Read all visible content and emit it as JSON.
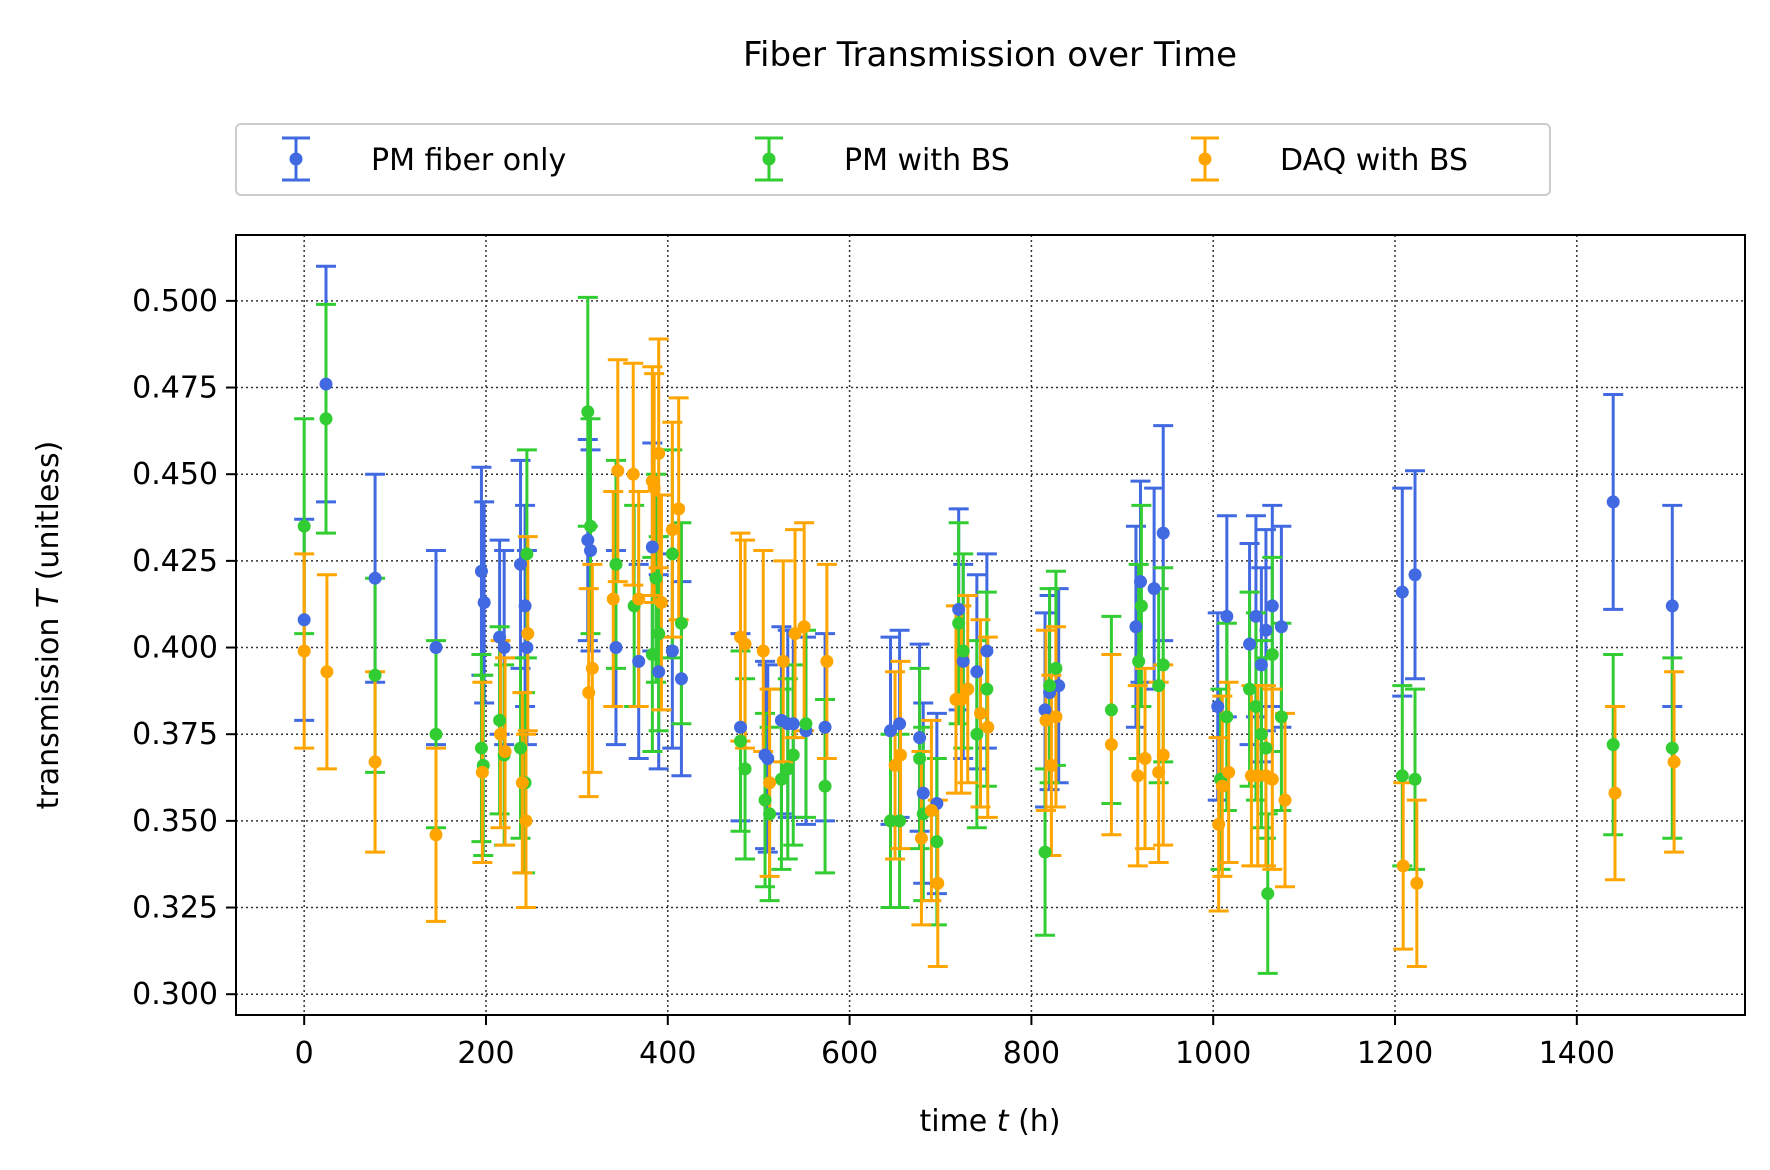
{
  "chart_data": {
    "type": "scatter",
    "title": "Fiber Transmission over Time",
    "xlabel": {
      "prefix": "time ",
      "var": "t",
      "suffix": " (h)"
    },
    "ylabel": {
      "prefix": "transmission ",
      "var": "T",
      "suffix": " (unitless)"
    },
    "xlim": [
      -75,
      1585
    ],
    "ylim": [
      0.294,
      0.519
    ],
    "xticks": [
      0,
      200,
      400,
      600,
      800,
      1000,
      1200,
      1400
    ],
    "xtick_labels": [
      "0",
      "200",
      "400",
      "600",
      "800",
      "1000",
      "1200",
      "1400"
    ],
    "yticks": [
      0.3,
      0.325,
      0.35,
      0.375,
      0.4,
      0.425,
      0.45,
      0.475,
      0.5
    ],
    "ytick_labels": [
      "0.300",
      "0.325",
      "0.350",
      "0.375",
      "0.400",
      "0.425",
      "0.450",
      "0.475",
      "0.500"
    ],
    "grid": true,
    "legend_position": "top-center, above plot",
    "series": [
      {
        "name": "PM fiber only",
        "color": "#4169e1",
        "x": [
          0,
          24,
          78,
          145,
          195,
          198,
          215,
          220,
          238,
          243,
          245,
          312,
          315,
          343,
          368,
          383,
          390,
          405,
          415,
          480,
          507,
          510,
          525,
          532,
          538,
          552,
          573,
          645,
          655,
          677,
          681,
          696,
          720,
          725,
          740,
          751,
          815,
          820,
          830,
          915,
          920,
          935,
          945,
          1005,
          1015,
          1040,
          1047,
          1053,
          1058,
          1065,
          1075,
          1208,
          1222,
          1440,
          1505
        ],
        "y": [
          0.408,
          0.476,
          0.42,
          0.4,
          0.422,
          0.413,
          0.403,
          0.4,
          0.424,
          0.412,
          0.4,
          0.431,
          0.428,
          0.4,
          0.396,
          0.429,
          0.393,
          0.399,
          0.391,
          0.377,
          0.369,
          0.368,
          0.379,
          0.378,
          0.378,
          0.376,
          0.377,
          0.376,
          0.378,
          0.374,
          0.358,
          0.355,
          0.411,
          0.396,
          0.393,
          0.399,
          0.382,
          0.387,
          0.389,
          0.406,
          0.419,
          0.417,
          0.433,
          0.383,
          0.409,
          0.401,
          0.409,
          0.395,
          0.405,
          0.412,
          0.406,
          0.416,
          0.421,
          0.442,
          0.412
        ],
        "err": [
          0.029,
          0.034,
          0.03,
          0.028,
          0.03,
          0.029,
          0.028,
          0.028,
          0.03,
          0.029,
          0.028,
          0.029,
          0.029,
          0.028,
          0.028,
          0.03,
          0.028,
          0.028,
          0.028,
          0.027,
          0.027,
          0.027,
          0.027,
          0.027,
          0.027,
          0.027,
          0.027,
          0.027,
          0.027,
          0.027,
          0.026,
          0.026,
          0.029,
          0.028,
          0.028,
          0.028,
          0.028,
          0.028,
          0.028,
          0.029,
          0.029,
          0.029,
          0.031,
          0.027,
          0.029,
          0.029,
          0.029,
          0.028,
          0.029,
          0.029,
          0.029,
          0.03,
          0.03,
          0.031,
          0.029
        ]
      },
      {
        "name": "PM with BS",
        "color": "#32cd32",
        "x": [
          0,
          24,
          78,
          145,
          195,
          197,
          215,
          220,
          238,
          243,
          245,
          312,
          315,
          343,
          363,
          383,
          387,
          390,
          405,
          415,
          480,
          485,
          507,
          512,
          525,
          532,
          538,
          552,
          573,
          645,
          655,
          677,
          681,
          696,
          720,
          725,
          740,
          751,
          815,
          820,
          827,
          888,
          918,
          921,
          940,
          945,
          1008,
          1015,
          1040,
          1047,
          1053,
          1058,
          1060,
          1065,
          1075,
          1208,
          1222,
          1440,
          1505
        ],
        "y": [
          0.435,
          0.466,
          0.392,
          0.375,
          0.371,
          0.366,
          0.379,
          0.369,
          0.371,
          0.361,
          0.427,
          0.468,
          0.435,
          0.424,
          0.412,
          0.398,
          0.42,
          0.404,
          0.427,
          0.407,
          0.373,
          0.365,
          0.356,
          0.352,
          0.362,
          0.365,
          0.369,
          0.378,
          0.36,
          0.35,
          0.35,
          0.368,
          0.352,
          0.344,
          0.407,
          0.399,
          0.375,
          0.388,
          0.341,
          0.389,
          0.394,
          0.382,
          0.396,
          0.412,
          0.389,
          0.395,
          0.362,
          0.38,
          0.388,
          0.383,
          0.375,
          0.371,
          0.329,
          0.398,
          0.38,
          0.363,
          0.362,
          0.372,
          0.371
        ],
        "err": [
          0.031,
          0.033,
          0.028,
          0.027,
          0.027,
          0.026,
          0.027,
          0.026,
          0.026,
          0.026,
          0.03,
          0.033,
          0.031,
          0.03,
          0.029,
          0.028,
          0.03,
          0.028,
          0.03,
          0.029,
          0.026,
          0.026,
          0.025,
          0.025,
          0.026,
          0.026,
          0.026,
          0.027,
          0.025,
          0.025,
          0.025,
          0.026,
          0.025,
          0.024,
          0.029,
          0.028,
          0.027,
          0.028,
          0.024,
          0.028,
          0.028,
          0.027,
          0.028,
          0.029,
          0.028,
          0.028,
          0.026,
          0.027,
          0.028,
          0.027,
          0.027,
          0.026,
          0.023,
          0.028,
          0.027,
          0.026,
          0.026,
          0.026,
          0.026
        ]
      },
      {
        "name": "DAQ with BS",
        "color": "#ffa500",
        "x": [
          0,
          25,
          78,
          145,
          196,
          216,
          221,
          240,
          244,
          246,
          313,
          317,
          340,
          345,
          362,
          368,
          383,
          385,
          390,
          393,
          405,
          412,
          480,
          485,
          505,
          512,
          527,
          540,
          550,
          575,
          650,
          656,
          679,
          690,
          697,
          717,
          723,
          730,
          744,
          752,
          816,
          822,
          827,
          888,
          917,
          925,
          940,
          945,
          1006,
          1010,
          1017,
          1042,
          1049,
          1058,
          1065,
          1079,
          1209,
          1224,
          1442,
          1507
        ],
        "y": [
          0.399,
          0.393,
          0.367,
          0.346,
          0.364,
          0.375,
          0.37,
          0.361,
          0.35,
          0.404,
          0.387,
          0.394,
          0.414,
          0.451,
          0.45,
          0.414,
          0.448,
          0.446,
          0.456,
          0.413,
          0.434,
          0.44,
          0.403,
          0.401,
          0.399,
          0.361,
          0.396,
          0.404,
          0.406,
          0.396,
          0.366,
          0.369,
          0.345,
          0.353,
          0.332,
          0.385,
          0.385,
          0.388,
          0.381,
          0.377,
          0.379,
          0.366,
          0.38,
          0.372,
          0.363,
          0.368,
          0.364,
          0.369,
          0.349,
          0.36,
          0.364,
          0.363,
          0.363,
          0.363,
          0.362,
          0.356,
          0.337,
          0.332,
          0.358,
          0.367
        ],
        "err": [
          0.028,
          0.028,
          0.026,
          0.025,
          0.026,
          0.027,
          0.027,
          0.026,
          0.025,
          0.028,
          0.03,
          0.03,
          0.031,
          0.032,
          0.032,
          0.031,
          0.033,
          0.033,
          0.033,
          0.031,
          0.031,
          0.032,
          0.03,
          0.03,
          0.029,
          0.027,
          0.029,
          0.03,
          0.03,
          0.028,
          0.027,
          0.027,
          0.025,
          0.026,
          0.024,
          0.027,
          0.027,
          0.027,
          0.027,
          0.026,
          0.026,
          0.026,
          0.026,
          0.026,
          0.026,
          0.026,
          0.026,
          0.026,
          0.025,
          0.026,
          0.026,
          0.026,
          0.026,
          0.026,
          0.026,
          0.025,
          0.024,
          0.024,
          0.025,
          0.026
        ]
      }
    ]
  }
}
